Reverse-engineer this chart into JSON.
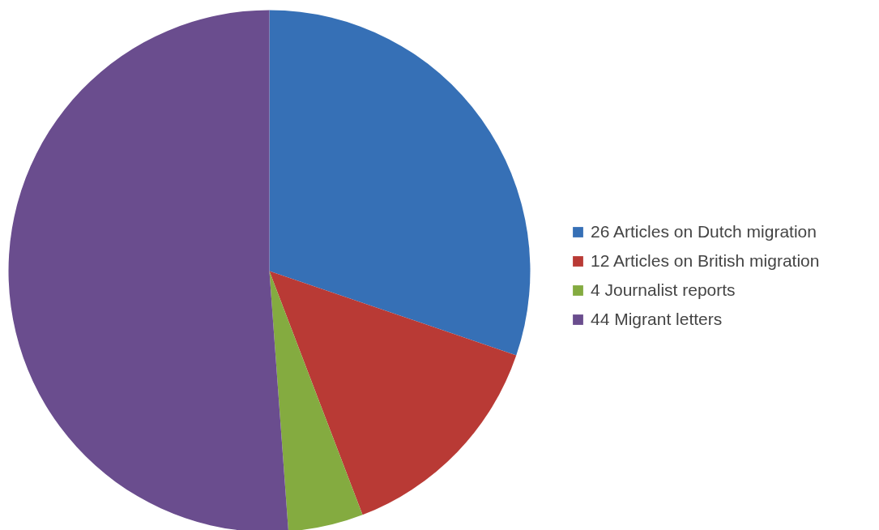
{
  "chart_data": {
    "type": "pie",
    "categories": [
      "26 Articles on Dutch migration",
      "12 Articles on British migration",
      "4 Journalist reports",
      "44 Migrant letters"
    ],
    "values": [
      26,
      12,
      4,
      44
    ],
    "colors": [
      "#3670b6",
      "#b93a35",
      "#84ab40",
      "#6a4d8e"
    ],
    "legend": "right"
  }
}
